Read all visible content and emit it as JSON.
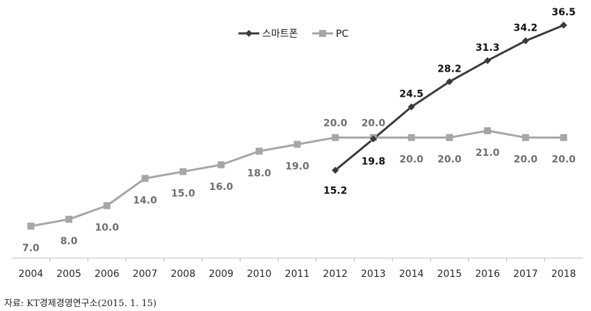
{
  "chart_data": {
    "type": "line",
    "categories": [
      "2004",
      "2005",
      "2006",
      "2007",
      "2008",
      "2009",
      "2010",
      "2011",
      "2012",
      "2013",
      "2014",
      "2015",
      "2016",
      "2017",
      "2018"
    ],
    "series": [
      {
        "name": "스마트폰",
        "color": "#3a3a3a",
        "marker": "diamond",
        "values": [
          null,
          null,
          null,
          null,
          null,
          null,
          null,
          null,
          15.2,
          19.8,
          24.5,
          28.2,
          31.3,
          34.2,
          36.5
        ],
        "labels": [
          "",
          "",
          "",
          "",
          "",
          "",
          "",
          "",
          "15.2",
          "19.8",
          "24.5",
          "28.2",
          "31.3",
          "34.2",
          "36.5"
        ]
      },
      {
        "name": "PC",
        "color": "#a6a6a6",
        "marker": "square",
        "values": [
          7.0,
          8.0,
          10.0,
          14.0,
          15.0,
          16.0,
          18.0,
          19.0,
          20.0,
          20.0,
          20.0,
          20.0,
          21.0,
          20.0,
          20.0
        ],
        "labels": [
          "7.0",
          "8.0",
          "10.0",
          "14.0",
          "15.0",
          "16.0",
          "18.0",
          "19.0",
          "20.0",
          "20.0",
          "20.0",
          "20.0",
          "21.0",
          "20.0",
          "20.0"
        ]
      }
    ],
    "legend_position": "top-center",
    "grid": false
  },
  "source": "자료: KT경제경영연구소(2015. 1. 15)"
}
